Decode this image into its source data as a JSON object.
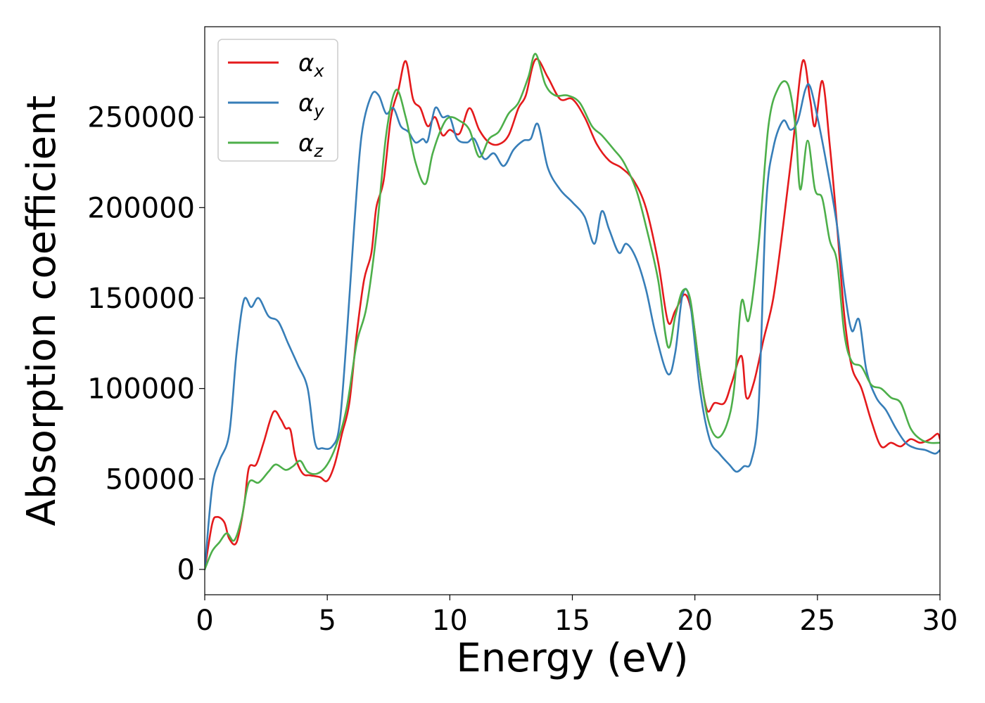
{
  "chart_data": {
    "type": "line",
    "title": "",
    "xlabel": "Energy (eV)",
    "ylabel": "Absorption coefficient",
    "xlim": [
      0,
      30
    ],
    "ylim": [
      -14000,
      300000
    ],
    "xticks": [
      0,
      5,
      10,
      15,
      20,
      25,
      30
    ],
    "yticks": [
      0,
      50000,
      100000,
      150000,
      200000,
      250000
    ],
    "xtick_labels": [
      "0",
      "5",
      "10",
      "15",
      "20",
      "25",
      "30"
    ],
    "ytick_labels": [
      "0",
      "50000",
      "100000",
      "150000",
      "200000",
      "250000"
    ],
    "grid": false,
    "legend_position": "top-left",
    "series": [
      {
        "name": "α",
        "subscript": "x",
        "color": "#e41a1c",
        "points": [
          [
            0,
            0
          ],
          [
            0.3,
            25000
          ],
          [
            0.5,
            29000
          ],
          [
            0.8,
            26000
          ],
          [
            1.0,
            17000
          ],
          [
            1.3,
            15000
          ],
          [
            1.6,
            35000
          ],
          [
            1.8,
            56000
          ],
          [
            2.1,
            58000
          ],
          [
            2.4,
            70000
          ],
          [
            2.8,
            87000
          ],
          [
            3.1,
            83000
          ],
          [
            3.3,
            78000
          ],
          [
            3.5,
            77000
          ],
          [
            3.7,
            62000
          ],
          [
            4.0,
            53000
          ],
          [
            4.3,
            52000
          ],
          [
            4.7,
            51000
          ],
          [
            5.0,
            49000
          ],
          [
            5.3,
            58000
          ],
          [
            5.6,
            75000
          ],
          [
            5.9,
            92000
          ],
          [
            6.2,
            130000
          ],
          [
            6.5,
            160000
          ],
          [
            6.8,
            175000
          ],
          [
            7.0,
            200000
          ],
          [
            7.3,
            215000
          ],
          [
            7.6,
            250000
          ],
          [
            7.9,
            265000
          ],
          [
            8.2,
            281000
          ],
          [
            8.5,
            260000
          ],
          [
            8.8,
            255000
          ],
          [
            9.1,
            245000
          ],
          [
            9.4,
            250000
          ],
          [
            9.7,
            240000
          ],
          [
            10.0,
            243000
          ],
          [
            10.4,
            241000
          ],
          [
            10.8,
            255000
          ],
          [
            11.2,
            243000
          ],
          [
            11.6,
            236000
          ],
          [
            12.0,
            235000
          ],
          [
            12.4,
            240000
          ],
          [
            12.8,
            255000
          ],
          [
            13.1,
            262000
          ],
          [
            13.5,
            282000
          ],
          [
            14.0,
            272000
          ],
          [
            14.5,
            260000
          ],
          [
            15.0,
            260000
          ],
          [
            15.5,
            250000
          ],
          [
            16.0,
            235000
          ],
          [
            16.5,
            226000
          ],
          [
            17.0,
            222000
          ],
          [
            17.5,
            215000
          ],
          [
            18.0,
            200000
          ],
          [
            18.5,
            170000
          ],
          [
            18.9,
            137000
          ],
          [
            19.2,
            143000
          ],
          [
            19.6,
            152000
          ],
          [
            19.9,
            140000
          ],
          [
            20.2,
            110000
          ],
          [
            20.5,
            88000
          ],
          [
            20.8,
            92000
          ],
          [
            21.2,
            92000
          ],
          [
            21.5,
            103000
          ],
          [
            21.9,
            118000
          ],
          [
            22.1,
            95000
          ],
          [
            22.4,
            103000
          ],
          [
            22.8,
            127000
          ],
          [
            23.2,
            150000
          ],
          [
            23.6,
            190000
          ],
          [
            24.0,
            235000
          ],
          [
            24.4,
            281000
          ],
          [
            24.7,
            260000
          ],
          [
            24.9,
            245000
          ],
          [
            25.2,
            270000
          ],
          [
            25.5,
            235000
          ],
          [
            25.8,
            190000
          ],
          [
            26.1,
            140000
          ],
          [
            26.4,
            112000
          ],
          [
            26.8,
            100000
          ],
          [
            27.2,
            82000
          ],
          [
            27.6,
            68000
          ],
          [
            28.0,
            70000
          ],
          [
            28.4,
            68000
          ],
          [
            28.8,
            72000
          ],
          [
            29.2,
            70000
          ],
          [
            29.6,
            72000
          ],
          [
            29.9,
            75000
          ],
          [
            30.0,
            72000
          ]
        ]
      },
      {
        "name": "α",
        "subscript": "y",
        "color": "#377eb8",
        "points": [
          [
            0,
            0
          ],
          [
            0.3,
            45000
          ],
          [
            0.6,
            60000
          ],
          [
            1.0,
            75000
          ],
          [
            1.3,
            120000
          ],
          [
            1.6,
            149000
          ],
          [
            1.9,
            145000
          ],
          [
            2.2,
            150000
          ],
          [
            2.6,
            140000
          ],
          [
            3.0,
            137000
          ],
          [
            3.4,
            125000
          ],
          [
            3.8,
            113000
          ],
          [
            4.2,
            100000
          ],
          [
            4.5,
            70000
          ],
          [
            4.8,
            67000
          ],
          [
            5.2,
            68000
          ],
          [
            5.5,
            80000
          ],
          [
            5.8,
            130000
          ],
          [
            6.1,
            190000
          ],
          [
            6.4,
            240000
          ],
          [
            6.8,
            262000
          ],
          [
            7.1,
            262000
          ],
          [
            7.4,
            252000
          ],
          [
            7.7,
            255000
          ],
          [
            8.0,
            245000
          ],
          [
            8.3,
            242000
          ],
          [
            8.6,
            236000
          ],
          [
            8.9,
            238000
          ],
          [
            9.1,
            237000
          ],
          [
            9.4,
            255000
          ],
          [
            9.7,
            250000
          ],
          [
            10.0,
            250000
          ],
          [
            10.3,
            238000
          ],
          [
            10.7,
            236000
          ],
          [
            11.0,
            238000
          ],
          [
            11.4,
            227000
          ],
          [
            11.8,
            230000
          ],
          [
            12.2,
            223000
          ],
          [
            12.6,
            232000
          ],
          [
            13.0,
            237000
          ],
          [
            13.3,
            238000
          ],
          [
            13.6,
            246000
          ],
          [
            14.0,
            222000
          ],
          [
            14.5,
            210000
          ],
          [
            15.0,
            203000
          ],
          [
            15.5,
            195000
          ],
          [
            15.9,
            180000
          ],
          [
            16.2,
            198000
          ],
          [
            16.5,
            188000
          ],
          [
            16.9,
            175000
          ],
          [
            17.2,
            180000
          ],
          [
            17.6,
            172000
          ],
          [
            18.0,
            155000
          ],
          [
            18.4,
            130000
          ],
          [
            18.9,
            108000
          ],
          [
            19.2,
            120000
          ],
          [
            19.5,
            152000
          ],
          [
            19.8,
            148000
          ],
          [
            20.2,
            100000
          ],
          [
            20.6,
            72000
          ],
          [
            21.0,
            64000
          ],
          [
            21.4,
            58000
          ],
          [
            21.7,
            54000
          ],
          [
            22.0,
            57000
          ],
          [
            22.3,
            60000
          ],
          [
            22.6,
            90000
          ],
          [
            22.9,
            200000
          ],
          [
            23.2,
            233000
          ],
          [
            23.6,
            248000
          ],
          [
            23.9,
            243000
          ],
          [
            24.2,
            248000
          ],
          [
            24.5,
            265000
          ],
          [
            24.7,
            267000
          ],
          [
            25.0,
            250000
          ],
          [
            25.4,
            222000
          ],
          [
            25.8,
            190000
          ],
          [
            26.1,
            155000
          ],
          [
            26.4,
            132000
          ],
          [
            26.7,
            138000
          ],
          [
            27.0,
            110000
          ],
          [
            27.4,
            95000
          ],
          [
            27.8,
            88000
          ],
          [
            28.2,
            78000
          ],
          [
            28.6,
            70000
          ],
          [
            29.0,
            67000
          ],
          [
            29.4,
            66000
          ],
          [
            29.8,
            64000
          ],
          [
            30.0,
            66000
          ]
        ]
      },
      {
        "name": "α",
        "subscript": "z",
        "color": "#4daf4a",
        "points": [
          [
            0,
            0
          ],
          [
            0.3,
            10000
          ],
          [
            0.6,
            15000
          ],
          [
            0.9,
            20000
          ],
          [
            1.2,
            16000
          ],
          [
            1.5,
            28000
          ],
          [
            1.8,
            48000
          ],
          [
            2.2,
            48000
          ],
          [
            2.6,
            54000
          ],
          [
            2.9,
            58000
          ],
          [
            3.3,
            55000
          ],
          [
            3.6,
            57000
          ],
          [
            3.9,
            60000
          ],
          [
            4.2,
            54000
          ],
          [
            4.6,
            53000
          ],
          [
            5.0,
            58000
          ],
          [
            5.4,
            70000
          ],
          [
            5.8,
            90000
          ],
          [
            6.2,
            125000
          ],
          [
            6.6,
            145000
          ],
          [
            7.0,
            185000
          ],
          [
            7.4,
            240000
          ],
          [
            7.8,
            265000
          ],
          [
            8.2,
            250000
          ],
          [
            8.6,
            225000
          ],
          [
            9.0,
            213000
          ],
          [
            9.3,
            230000
          ],
          [
            9.7,
            245000
          ],
          [
            10.0,
            250000
          ],
          [
            10.4,
            248000
          ],
          [
            10.8,
            243000
          ],
          [
            11.2,
            228000
          ],
          [
            11.6,
            238000
          ],
          [
            12.0,
            242000
          ],
          [
            12.4,
            252000
          ],
          [
            12.8,
            258000
          ],
          [
            13.2,
            272000
          ],
          [
            13.5,
            285000
          ],
          [
            13.9,
            268000
          ],
          [
            14.3,
            262000
          ],
          [
            14.8,
            262000
          ],
          [
            15.3,
            258000
          ],
          [
            15.8,
            245000
          ],
          [
            16.2,
            240000
          ],
          [
            16.7,
            232000
          ],
          [
            17.1,
            225000
          ],
          [
            17.6,
            210000
          ],
          [
            18.0,
            190000
          ],
          [
            18.5,
            160000
          ],
          [
            18.9,
            123000
          ],
          [
            19.2,
            140000
          ],
          [
            19.5,
            154000
          ],
          [
            19.8,
            150000
          ],
          [
            20.1,
            120000
          ],
          [
            20.5,
            85000
          ],
          [
            20.9,
            73000
          ],
          [
            21.3,
            80000
          ],
          [
            21.6,
            100000
          ],
          [
            21.9,
            148000
          ],
          [
            22.2,
            138000
          ],
          [
            22.6,
            180000
          ],
          [
            23.0,
            245000
          ],
          [
            23.4,
            266000
          ],
          [
            23.8,
            268000
          ],
          [
            24.1,
            245000
          ],
          [
            24.3,
            210000
          ],
          [
            24.6,
            237000
          ],
          [
            24.9,
            210000
          ],
          [
            25.2,
            205000
          ],
          [
            25.5,
            182000
          ],
          [
            25.8,
            170000
          ],
          [
            26.1,
            130000
          ],
          [
            26.4,
            115000
          ],
          [
            26.8,
            112000
          ],
          [
            27.2,
            102000
          ],
          [
            27.6,
            100000
          ],
          [
            28.0,
            95000
          ],
          [
            28.4,
            92000
          ],
          [
            28.8,
            78000
          ],
          [
            29.2,
            72000
          ],
          [
            29.6,
            70000
          ],
          [
            30.0,
            70000
          ]
        ]
      }
    ]
  }
}
